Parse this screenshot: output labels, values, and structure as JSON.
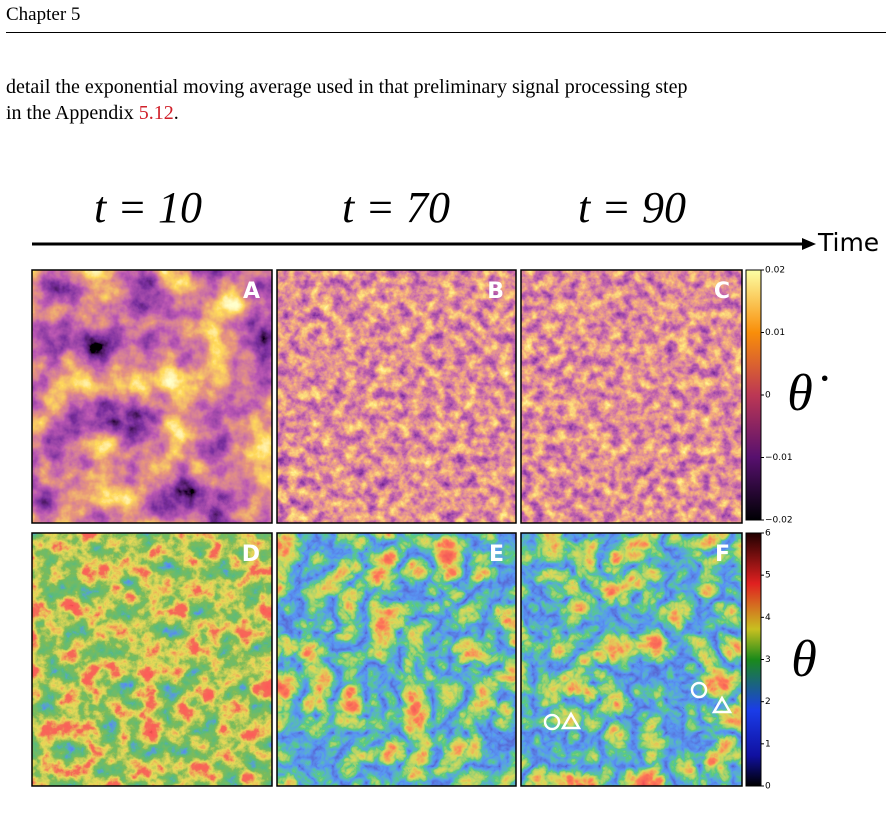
{
  "header": {
    "chapter": "Chapter 5"
  },
  "body": {
    "line1": "detail the exponential moving average used in that preliminary signal processing step",
    "line2_prefix": "in the Appendix ",
    "line2_link": "5.12",
    "line2_suffix": "."
  },
  "figure": {
    "times": [
      "t = 10",
      "t = 70",
      "t = 90"
    ],
    "axis_label": "Time",
    "panels": [
      "A",
      "B",
      "C",
      "D",
      "E",
      "F"
    ],
    "colorbar_top": {
      "symbol": "θ̇",
      "ticks": [
        "0.02",
        "0.01",
        "0",
        "−0.01",
        "−0.02"
      ]
    },
    "colorbar_bottom": {
      "symbol": "θ",
      "ticks": [
        "6",
        "5",
        "4",
        "3",
        "2",
        "1",
        "0"
      ]
    }
  }
}
